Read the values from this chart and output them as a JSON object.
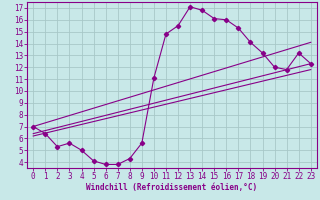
{
  "xlabel": "Windchill (Refroidissement éolien,°C)",
  "bg_color": "#c8e8e8",
  "grid_color": "#a8c8c8",
  "line_color": "#880088",
  "spine_color": "#880088",
  "xlim": [
    -0.5,
    23.5
  ],
  "ylim": [
    3.5,
    17.5
  ],
  "xticks": [
    0,
    1,
    2,
    3,
    4,
    5,
    6,
    7,
    8,
    9,
    10,
    11,
    12,
    13,
    14,
    15,
    16,
    17,
    18,
    19,
    20,
    21,
    22,
    23
  ],
  "yticks": [
    4,
    5,
    6,
    7,
    8,
    9,
    10,
    11,
    12,
    13,
    14,
    15,
    16,
    17
  ],
  "curve_x": [
    0,
    1,
    2,
    3,
    4,
    5,
    6,
    7,
    8,
    9,
    10,
    11,
    12,
    13,
    14,
    15,
    16,
    17,
    18,
    19,
    20,
    21,
    22,
    23
  ],
  "curve_y": [
    7.0,
    6.4,
    5.3,
    5.6,
    5.0,
    4.1,
    3.8,
    3.8,
    4.3,
    5.6,
    11.1,
    14.8,
    15.5,
    17.1,
    16.8,
    16.1,
    16.0,
    15.3,
    14.1,
    13.2,
    12.0,
    11.8,
    13.2,
    12.3
  ],
  "line1_x": [
    0,
    23
  ],
  "line1_y": [
    7.0,
    14.1
  ],
  "line2_x": [
    0,
    23
  ],
  "line2_y": [
    6.4,
    12.3
  ],
  "line3_x": [
    0,
    23
  ],
  "line3_y": [
    6.2,
    11.8
  ],
  "tick_fontsize": 5.5,
  "xlabel_fontsize": 5.5
}
